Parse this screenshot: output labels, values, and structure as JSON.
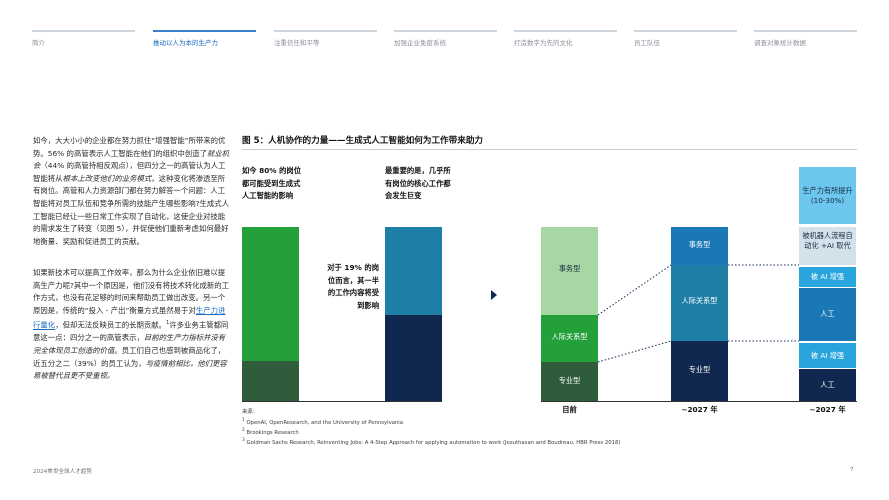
{
  "nav": {
    "items": [
      "简介",
      "推动以人为本的生产力",
      "注重信任和平等",
      "加强企业免疫系统",
      "打造数字为先的文化",
      "员工队伍",
      "调查对象统计数据"
    ],
    "active_index": 1
  },
  "text": {
    "p1_a": "如今，大大小小的企业都在努力抓住“增强智能”所带来的优势。56% 的高管表示人工智能在他们的组织中创造了",
    "p1_b": "就业机会",
    "p1_c": "（44% 的高管持相反观点），但四分之一的高管认为人工智能将从",
    "p1_d": "根本上改变他们的业务模式",
    "p1_e": "，这种变化将渗透至所有岗位。高管和人力资源部门都在努力解答一个问题：人工智能将对员工队伍和竞争所需的技能产生哪些影响?生成式人工智能已经让一些日常工作实现了自动化，这使企业对技能的需求发生了转变（见图 5），并促使他们重新考虑如何最好地衡量、奖励和促进员工的贡献。",
    "p2_a": "如果新技术可以提高工作效率，那么为什么企业依旧难以提高生产力呢?其中一个原因是，他们没有将技术转化成新的工作方式，也没有花足够的时间来帮助员工做出改变。另一个原因是，传统的“投入 - 产出”衡量方式虽然易于对",
    "p2_link": "生产力进行量化",
    "p2_b": "，但却无法反映员工的长期贡献。",
    "p2_sup": "1",
    "p2_c": "许多业务主管都同意这一点：四分之一的高管表示，",
    "p2_d": "目前的生产力指标并没有完全体现员工创造的价值",
    "p2_e": "。员工们自己也感到被商品化了，近五分之二（39%）的员工认为，",
    "p2_f": "与疫情前相比，他们更容易被替代且更不受重视。"
  },
  "figure": {
    "title": "图 5：人机协作的力量——生成式人工智能如何为工作带来助力",
    "annot_80": "如今 80% 的岗位都可能受到生成式人工智能的影响",
    "annot_19": "对于 19% 的岗位而言，其一半的工作内容将受到影响",
    "annot_most": "最重要的是，几乎所有岗位的核心工作都会发生巨变",
    "middle_segments": {
      "clerical": "事务型",
      "interpersonal": "人际关系型",
      "professional": "专业型"
    },
    "right_segments": {
      "productivity": "生产力有所提升 (10-30%)",
      "replaced": "被机器人流程自动化 +AI 取代",
      "ai_enhanced": "被 AI 增强",
      "human": "人工"
    },
    "x_labels": [
      "目前",
      "~2027 年",
      "~2027 年"
    ],
    "colors": {
      "green_bright": "#23a03a",
      "green_dark": "#2f5c3b",
      "teal": "#1d7fa5",
      "navy": "#10274f",
      "green_light": "#a7d7a3",
      "blue": "#1b78b6",
      "sky": "#2aa4dd",
      "sky_light": "#6cc6ee",
      "gray_light": "#d3e1ea"
    }
  },
  "notes": {
    "source_label": "来源：",
    "n1": "OpenAI, OpenResearch, and the University of Pennsylvania",
    "n2": "Brookings Research",
    "n3": "Goldman Sachs Research, Reinventing Jobs: A 4-Step Approach for applying automation to work (Jesuthasan and Boudreau, HBR Press 2018)"
  },
  "footer": {
    "left": "2024美世全球人才趋势",
    "page": "7"
  }
}
